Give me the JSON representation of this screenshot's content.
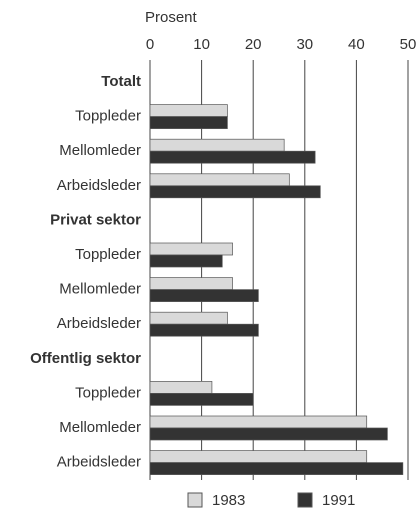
{
  "chart_data": {
    "type": "bar",
    "orientation": "horizontal",
    "x_axis_label": "Prosent",
    "groups": [
      {
        "label": "Totalt",
        "categories": [
          "Toppleder",
          "Mellomleder",
          "Arbeidsleder"
        ]
      },
      {
        "label": "Privat sektor",
        "categories": [
          "Toppleder",
          "Mellomleder",
          "Arbeidsleder"
        ]
      },
      {
        "label": "Offentlig sektor",
        "categories": [
          "Toppleder",
          "Mellomleder",
          "Arbeidsleder"
        ]
      }
    ],
    "series": [
      {
        "name": "1983",
        "color": "#d9d9d9",
        "values": [
          15,
          26,
          27,
          16,
          16,
          15,
          12,
          42,
          42
        ]
      },
      {
        "name": "1991",
        "color": "#333333",
        "values": [
          15,
          32,
          33,
          14,
          21,
          21,
          20,
          46,
          49
        ]
      }
    ],
    "xlim": [
      0,
      50
    ],
    "xticks": [
      0,
      10,
      20,
      30,
      40,
      50
    ],
    "grid": true
  }
}
